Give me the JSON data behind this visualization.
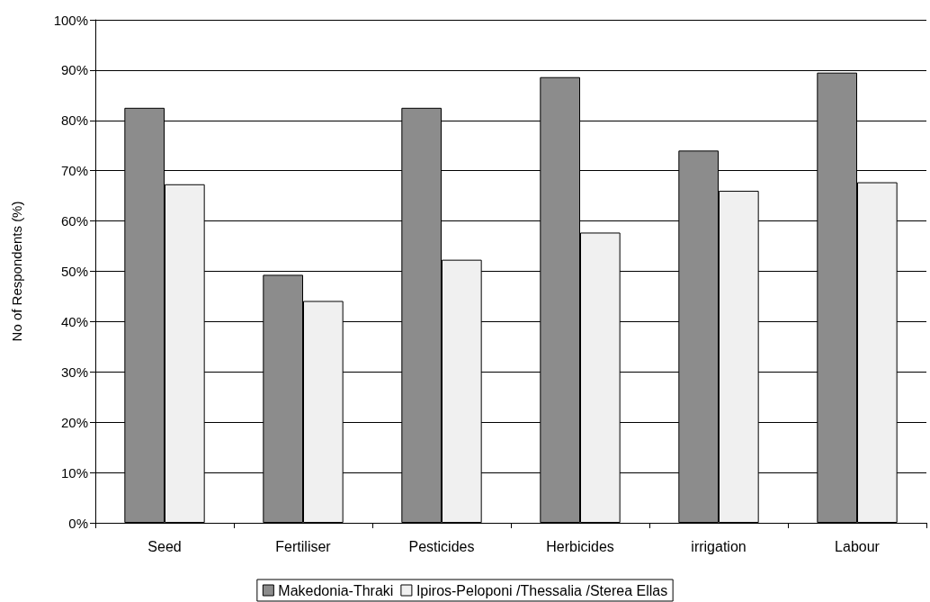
{
  "chart_data": {
    "type": "bar",
    "ylabel": "No of Respondents (%)",
    "categories": [
      "Seed",
      "Fertiliser",
      "Pesticides",
      "Herbicides",
      "irrigation",
      "Labour"
    ],
    "series": [
      {
        "name": "Makedonia-Thraki",
        "color": "#8c8c8c",
        "values": [
          82.5,
          49.3,
          82.5,
          88.6,
          74.0,
          89.5
        ]
      },
      {
        "name": "Ipiros-Peloponi /Thessalia /Sterea Ellas",
        "color": "#f0f0f0",
        "values": [
          67.3,
          44.1,
          52.3,
          57.7,
          66.0,
          67.7
        ]
      }
    ],
    "ylim": [
      0,
      100
    ],
    "yticks": [
      {
        "value": 0,
        "label": "0%"
      },
      {
        "value": 10,
        "label": "10%"
      },
      {
        "value": 20,
        "label": "20%"
      },
      {
        "value": 30,
        "label": "30%"
      },
      {
        "value": 40,
        "label": "40%"
      },
      {
        "value": 50,
        "label": "50%"
      },
      {
        "value": 60,
        "label": "60%"
      },
      {
        "value": 70,
        "label": "70%"
      },
      {
        "value": 80,
        "label": "80%"
      },
      {
        "value": 90,
        "label": "90%"
      },
      {
        "value": 100,
        "label": "100%"
      }
    ],
    "grid": "y",
    "legend": "bottom"
  }
}
